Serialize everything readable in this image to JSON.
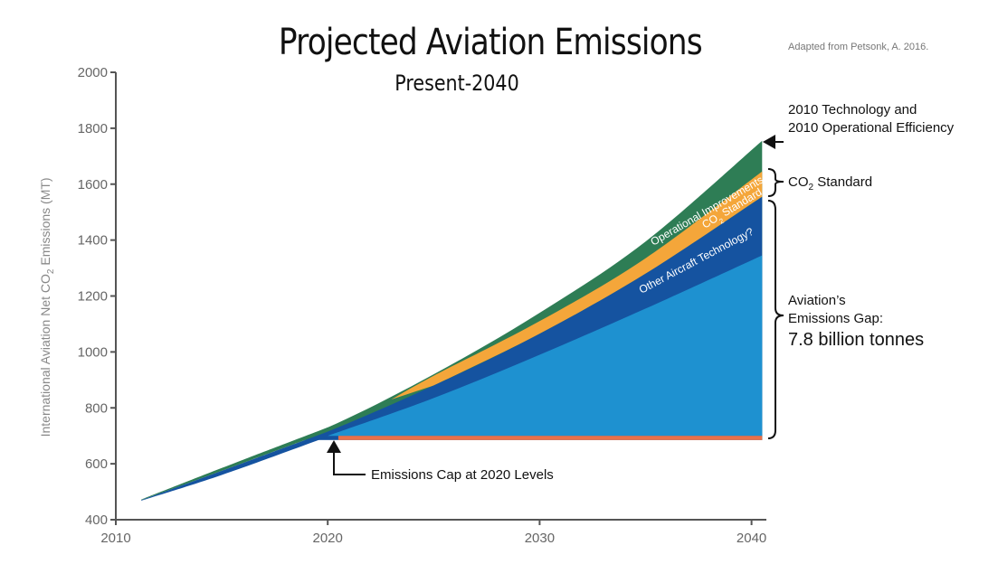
{
  "chart_data": {
    "type": "area",
    "title": "Projected Aviation Emissions",
    "subtitle": "Present-2040",
    "source_note": "Adapted from Petsonk, A. 2016.",
    "ylabel_prefix": "International Aviation Net CO",
    "ylabel_sub": "2",
    "ylabel_suffix": " Emissions (MT)",
    "xlabel": "",
    "xlim": [
      2010,
      2040.7
    ],
    "ylim": [
      400,
      2000
    ],
    "x_ticks": [
      "2010",
      "2020",
      "2030",
      "2040"
    ],
    "y_ticks": [
      "400",
      "600",
      "800",
      "1000",
      "1200",
      "1400",
      "1600",
      "1800",
      "2000"
    ],
    "x": [
      2011.2,
      2015,
      2020,
      2025,
      2030,
      2035,
      2040.5
    ],
    "series": [
      {
        "key": "cap",
        "label": "Emissions Cap at 2020 Levels",
        "color": "#e8714a",
        "x_start": 2020.5,
        "lower": 685,
        "upper": 700
      },
      {
        "key": "gap",
        "color": "#1e91d0",
        "lower": [
          null,
          null,
          700,
          700,
          700,
          700,
          700
        ],
        "upper": [
          null,
          null,
          700,
          835,
          990,
          1155,
          1345
        ]
      },
      {
        "key": "other",
        "label": "Other Aircraft Technology?",
        "color": "#1553a0",
        "upper": [
          470,
          575,
          715,
          880,
          1065,
          1280,
          1555
        ]
      },
      {
        "key": "co2",
        "label": "CO",
        "label_sub": "2",
        "label_suffix": " Standard",
        "color": "#f4a63a",
        "x_start": 2023,
        "upper": [
          null,
          null,
          null,
          915,
          1110,
          1335,
          1645
        ]
      },
      {
        "key": "ops",
        "label": "Operational Improvements",
        "color": "#2e7d55",
        "upper": [
          472,
          585,
          730,
          920,
          1140,
          1395,
          1755
        ]
      }
    ],
    "annotations": {
      "tech_line1": "2010 Technology and",
      "tech_line2": "2010 Operational Efficiency",
      "co2_prefix": "CO",
      "co2_sub": "2",
      "co2_suffix": " Standard",
      "gap_line1": "Aviation’s",
      "gap_line2": "Emissions Gap:",
      "gap_value": "7.8 billion tonnes",
      "cap_label": "Emissions Cap at 2020 Levels"
    },
    "colors": {
      "axis": "#555555",
      "tick_text": "#666666",
      "annotation": "#111111"
    }
  }
}
